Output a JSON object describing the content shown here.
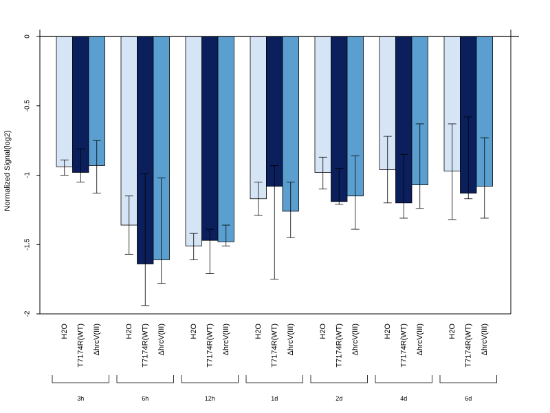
{
  "chart_data": {
    "type": "bar",
    "ylabel": "Normalized Signal(log2)",
    "ylim": [
      -2,
      0
    ],
    "yticks": [
      {
        "value": 0,
        "label": "0"
      },
      {
        "value": -0.5,
        "label": "-0.5"
      },
      {
        "value": -1,
        "label": "-1"
      },
      {
        "value": -1.5,
        "label": "-1.5"
      },
      {
        "value": -2,
        "label": "-2"
      }
    ],
    "groups": [
      "3h",
      "6h",
      "12h",
      "1d",
      "2d",
      "4d",
      "6d"
    ],
    "bar_labels": [
      "H2O",
      "T7174R(WT)",
      "ΔhrcV(III)"
    ],
    "colors": [
      "#d6e5f5",
      "#0a1f5c",
      "#5a9fcf"
    ],
    "series": [
      {
        "values": [
          -0.94,
          -1.36,
          -1.51,
          -1.17,
          -0.98,
          -0.96,
          -0.97
        ],
        "error_low": [
          -1.0,
          -1.57,
          -1.61,
          -1.29,
          -1.1,
          -1.2,
          -1.32
        ],
        "error_high": [
          -0.89,
          -1.15,
          -1.42,
          -1.05,
          -0.87,
          -0.72,
          -0.63
        ]
      },
      {
        "values": [
          -0.98,
          -1.64,
          -1.47,
          -1.08,
          -1.19,
          -1.2,
          -1.13
        ],
        "error_low": [
          -1.05,
          -1.94,
          -1.71,
          -1.75,
          -1.21,
          -1.31,
          -1.17
        ],
        "error_high": [
          -0.81,
          -0.99,
          -1.39,
          -0.93,
          -0.95,
          -0.85,
          -0.58
        ]
      },
      {
        "values": [
          -0.93,
          -1.61,
          -1.48,
          -1.26,
          -1.15,
          -1.07,
          -1.08
        ],
        "error_low": [
          -1.13,
          -1.78,
          -1.51,
          -1.45,
          -1.39,
          -1.24,
          -1.31
        ],
        "error_high": [
          -0.75,
          -1.02,
          -1.36,
          -1.05,
          -0.86,
          -0.63,
          -0.73
        ]
      }
    ]
  }
}
